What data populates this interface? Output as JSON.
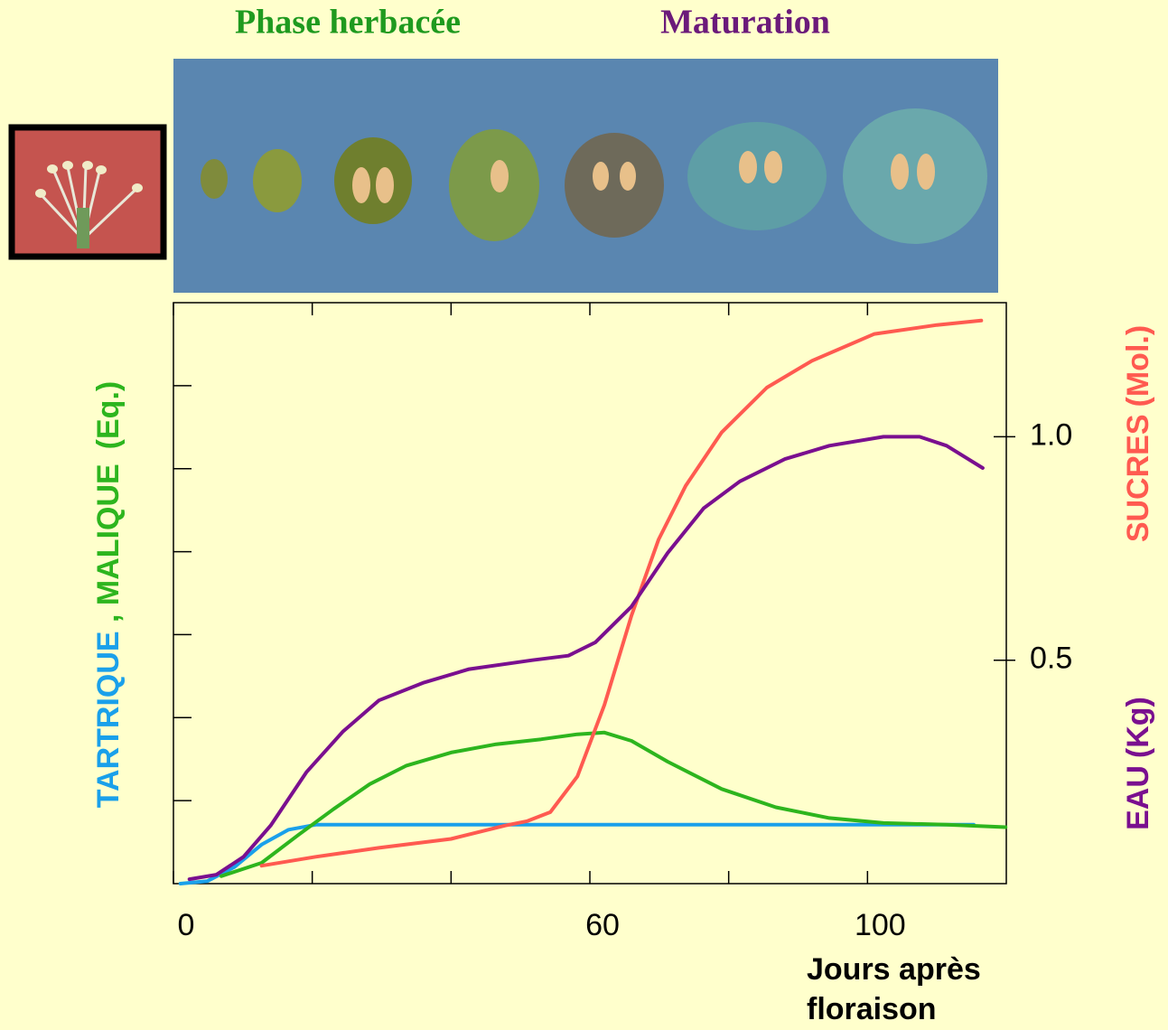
{
  "header": {
    "phase1": "Phase herbacée",
    "phase1_color": "#1f9a1f",
    "phase2": "Maturation",
    "phase2_color": "#6b1a7a"
  },
  "chart_data": {
    "type": "line",
    "xlim": [
      0,
      120
    ],
    "xticks": [
      0,
      60,
      100
    ],
    "xminor_ticks": [
      20,
      40,
      80
    ],
    "xlabel_lines": [
      "Jours après",
      "floraison"
    ],
    "ylim": [
      0,
      7
    ],
    "y_unlabeled_ticks": [
      1,
      2,
      3,
      4,
      5,
      6
    ],
    "y_label_separator": " , ",
    "y_unit": "(Eq.)",
    "y2lim": [
      0,
      1.3
    ],
    "y2ticks": [
      0.5,
      {
        "value": 1,
        "label": "1.0"
      }
    ],
    "series": [
      {
        "name": "TARTRIQUE",
        "color": "#1aa0ea",
        "axis": "y",
        "x": [
          1.0,
          4.9,
          8.8,
          12.7,
          16.6,
          20.5,
          115.3
        ],
        "values": [
          0,
          0.03,
          0.2,
          0.47,
          0.65,
          0.71,
          0.71
        ]
      },
      {
        "name": "MALIQUE",
        "color": "#2db51e",
        "axis": "y",
        "x": [
          6.9,
          12.7,
          17.9,
          23.1,
          28.3,
          33.5,
          40,
          46.5,
          53,
          58.2,
          62.1,
          66,
          71.2,
          79,
          86.8,
          94.5,
          102.3,
          111.4,
          119.9
        ],
        "values": [
          0.09,
          0.25,
          0.58,
          0.9,
          1.2,
          1.42,
          1.58,
          1.68,
          1.74,
          1.8,
          1.82,
          1.72,
          1.47,
          1.14,
          0.92,
          0.79,
          0.73,
          0.71,
          0.68
        ]
      },
      {
        "name": "SUCRES",
        "unit": "(Mol.)",
        "color": "#ff5a50",
        "axis": "y2",
        "x": [
          12.7,
          20.5,
          29.6,
          40,
          47.8,
          51,
          54.3,
          58.2,
          62.1,
          66,
          69.9,
          73.8,
          79,
          85.5,
          92,
          101,
          110,
          116.4
        ],
        "values": [
          0.04,
          0.06,
          0.08,
          0.1,
          0.13,
          0.14,
          0.16,
          0.24,
          0.4,
          0.6,
          0.77,
          0.89,
          1.01,
          1.11,
          1.17,
          1.23,
          1.25,
          1.26
        ]
      },
      {
        "name": "EAU",
        "unit": "(Kg)",
        "color": "#7a0f8f",
        "axis": "y2",
        "x": [
          2.3,
          6.2,
          10.1,
          14,
          19.2,
          24.4,
          29.6,
          36.1,
          42.6,
          51.7,
          56.9,
          60.8,
          66,
          71.2,
          76.4,
          81.6,
          88.1,
          94.5,
          102.3,
          107.5,
          111.4,
          116.6
        ],
        "values": [
          0.01,
          0.02,
          0.06,
          0.13,
          0.25,
          0.34,
          0.41,
          0.45,
          0.48,
          0.5,
          0.51,
          0.54,
          0.62,
          0.74,
          0.84,
          0.9,
          0.95,
          0.98,
          1.0,
          1.0,
          0.98,
          0.93
        ]
      }
    ]
  }
}
